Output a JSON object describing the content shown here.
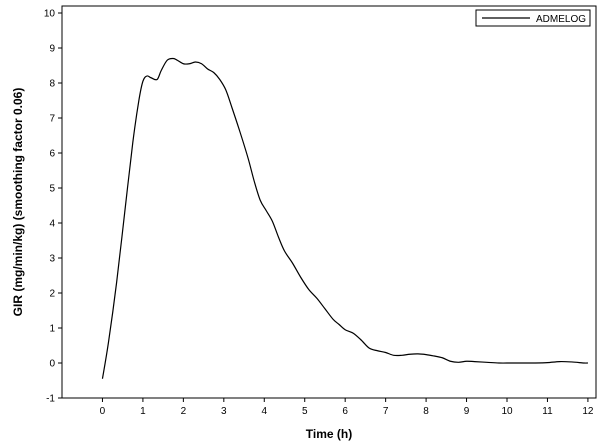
{
  "chart_data": {
    "type": "line",
    "title": "",
    "xlabel": "Time (h)",
    "ylabel": "GIR (mg/min/kg) (smoothing factor 0.06)",
    "xlim": [
      -1,
      12.2
    ],
    "ylim": [
      -1,
      10.2
    ],
    "xticks": [
      0,
      1,
      2,
      3,
      4,
      5,
      6,
      7,
      8,
      9,
      10,
      11,
      12
    ],
    "yticks": [
      -1,
      0,
      1,
      2,
      3,
      4,
      5,
      6,
      7,
      8,
      9,
      10
    ],
    "grid": false,
    "legend": "top-right",
    "series": [
      {
        "name": "ADMELOG",
        "color": "#000000",
        "x": [
          0,
          0.15,
          0.35,
          0.55,
          0.75,
          0.9,
          1.0,
          1.1,
          1.2,
          1.35,
          1.45,
          1.6,
          1.75,
          1.85,
          2.0,
          2.15,
          2.3,
          2.45,
          2.6,
          2.75,
          2.9,
          3.05,
          3.2,
          3.4,
          3.6,
          3.75,
          3.9,
          4.05,
          4.2,
          4.35,
          4.5,
          4.7,
          4.9,
          5.1,
          5.3,
          5.5,
          5.7,
          5.85,
          6.0,
          6.2,
          6.4,
          6.6,
          6.8,
          7.0,
          7.2,
          7.4,
          7.6,
          7.8,
          8.0,
          8.2,
          8.4,
          8.6,
          8.8,
          9.0,
          9.2,
          9.5,
          9.8,
          10.1,
          10.4,
          10.7,
          11.0,
          11.3,
          11.6,
          11.9,
          12.0
        ],
        "y": [
          -0.45,
          0.6,
          2.3,
          4.3,
          6.3,
          7.5,
          8.05,
          8.2,
          8.15,
          8.1,
          8.35,
          8.65,
          8.7,
          8.65,
          8.55,
          8.55,
          8.6,
          8.55,
          8.4,
          8.3,
          8.1,
          7.8,
          7.3,
          6.6,
          5.85,
          5.2,
          4.65,
          4.35,
          4.05,
          3.6,
          3.2,
          2.85,
          2.45,
          2.1,
          1.85,
          1.55,
          1.25,
          1.1,
          0.95,
          0.85,
          0.65,
          0.42,
          0.35,
          0.3,
          0.22,
          0.22,
          0.25,
          0.26,
          0.24,
          0.2,
          0.15,
          0.05,
          0.02,
          0.05,
          0.04,
          0.02,
          0.0,
          0.0,
          0.0,
          0.0,
          0.01,
          0.04,
          0.03,
          0.0,
          0.0
        ]
      }
    ]
  }
}
